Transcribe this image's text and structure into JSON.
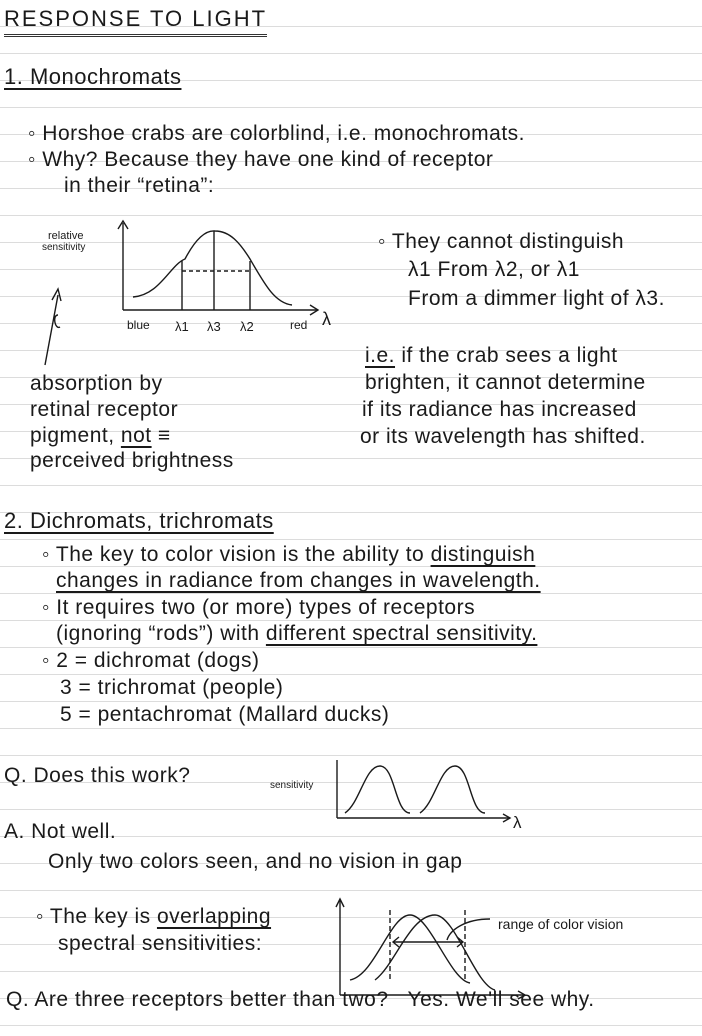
{
  "title": "RESPONSE TO LIGHT",
  "section1": {
    "heading": "1. Monochromats",
    "bullets": [
      "Horshoe crabs are colorblind, i.e. monochromats.",
      "Why? Because they have one kind of receptor",
      "in their “retina”:"
    ],
    "diagram": {
      "ylabel_line1": "relative",
      "ylabel_line2": "sensitivity",
      "xlabel": "λ",
      "ticks": [
        "blue",
        "λ1",
        "λ3",
        "λ2",
        "red"
      ]
    },
    "right_bullet": [
      "They cannot distinguish",
      "λ1 From λ2, or λ1",
      "From a dimmer light of λ3."
    ],
    "ie_lead": "i.e.",
    "ie_lines": [
      " if the crab sees a light",
      "brighten, it cannot determine",
      "if its radiance has increased",
      "or its wavelength has shifted."
    ],
    "annotation_lines": [
      "absorption by",
      "retinal receptor",
      "pigment, ",
      "not",
      " ≡",
      "perceived brightness"
    ]
  },
  "section2": {
    "heading": "2. Dichromats, trichromats",
    "line1a": "The key to color vision is the ability to ",
    "line1b": "distinguish",
    "line2": "changes in radiance from changes in wavelength.",
    "line3": "It requires two (or more) types of receptors",
    "line4a": "(ignoring “rods”) with ",
    "line4b": "different spectral sensitivity.",
    "list": [
      "2 = dichromat (dogs)",
      "3 = trichromat (people)",
      "5 = pentachromat (Mallard ducks)"
    ]
  },
  "qa": {
    "q1": "Q. Does this work?",
    "chart_ylabel": "sensitivity",
    "chart_xlabel": "λ",
    "a1": "A. Not well.",
    "a1_line2": "Only two colors seen, and no vision in gap",
    "key_a": "The key is ",
    "key_b": "overlapping",
    "key_line2": "spectral sensitivities:",
    "range_label": "range of color vision",
    "q2": "Q. Are three receptors better than two?",
    "q2_answer": "Yes. We'll see why."
  }
}
